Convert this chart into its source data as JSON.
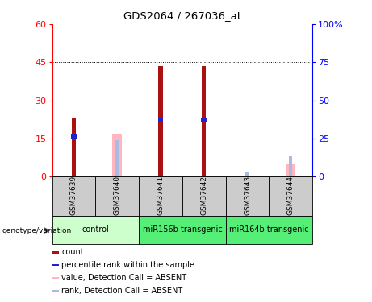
{
  "title": "GDS2064 / 267036_at",
  "samples": [
    "GSM37639",
    "GSM37640",
    "GSM37641",
    "GSM37642",
    "GSM37643",
    "GSM37644"
  ],
  "groups": [
    {
      "label": "control",
      "indices": [
        0,
        1
      ]
    },
    {
      "label": "miR156b transgenic",
      "indices": [
        2,
        3
      ]
    },
    {
      "label": "miR164b transgenic",
      "indices": [
        4,
        5
      ]
    }
  ],
  "count_values": [
    23.0,
    0,
    43.5,
    43.5,
    0,
    0
  ],
  "count_absent": [
    0,
    17.0,
    0,
    0,
    0.5,
    5.0
  ],
  "percentile_values": [
    16.5,
    0,
    23.0,
    23.0,
    0,
    0
  ],
  "percentile_absent": [
    0,
    14.5,
    0,
    0,
    2.0,
    8.0
  ],
  "ylim_left": [
    0,
    60
  ],
  "ylim_right": [
    0,
    100
  ],
  "yticks_left": [
    0,
    15,
    30,
    45,
    60
  ],
  "yticks_right": [
    0,
    25,
    50,
    75,
    100
  ],
  "ytick_labels_right": [
    "0",
    "25",
    "50",
    "75",
    "100%"
  ],
  "count_color": "#AA1111",
  "absent_count_color": "#FFB6C1",
  "percentile_color": "#2222CC",
  "percentile_absent_color": "#AABBDD",
  "group_colors": [
    "#CCFFCC",
    "#55EE77",
    "#55EE77"
  ],
  "sample_box_color": "#CCCCCC"
}
